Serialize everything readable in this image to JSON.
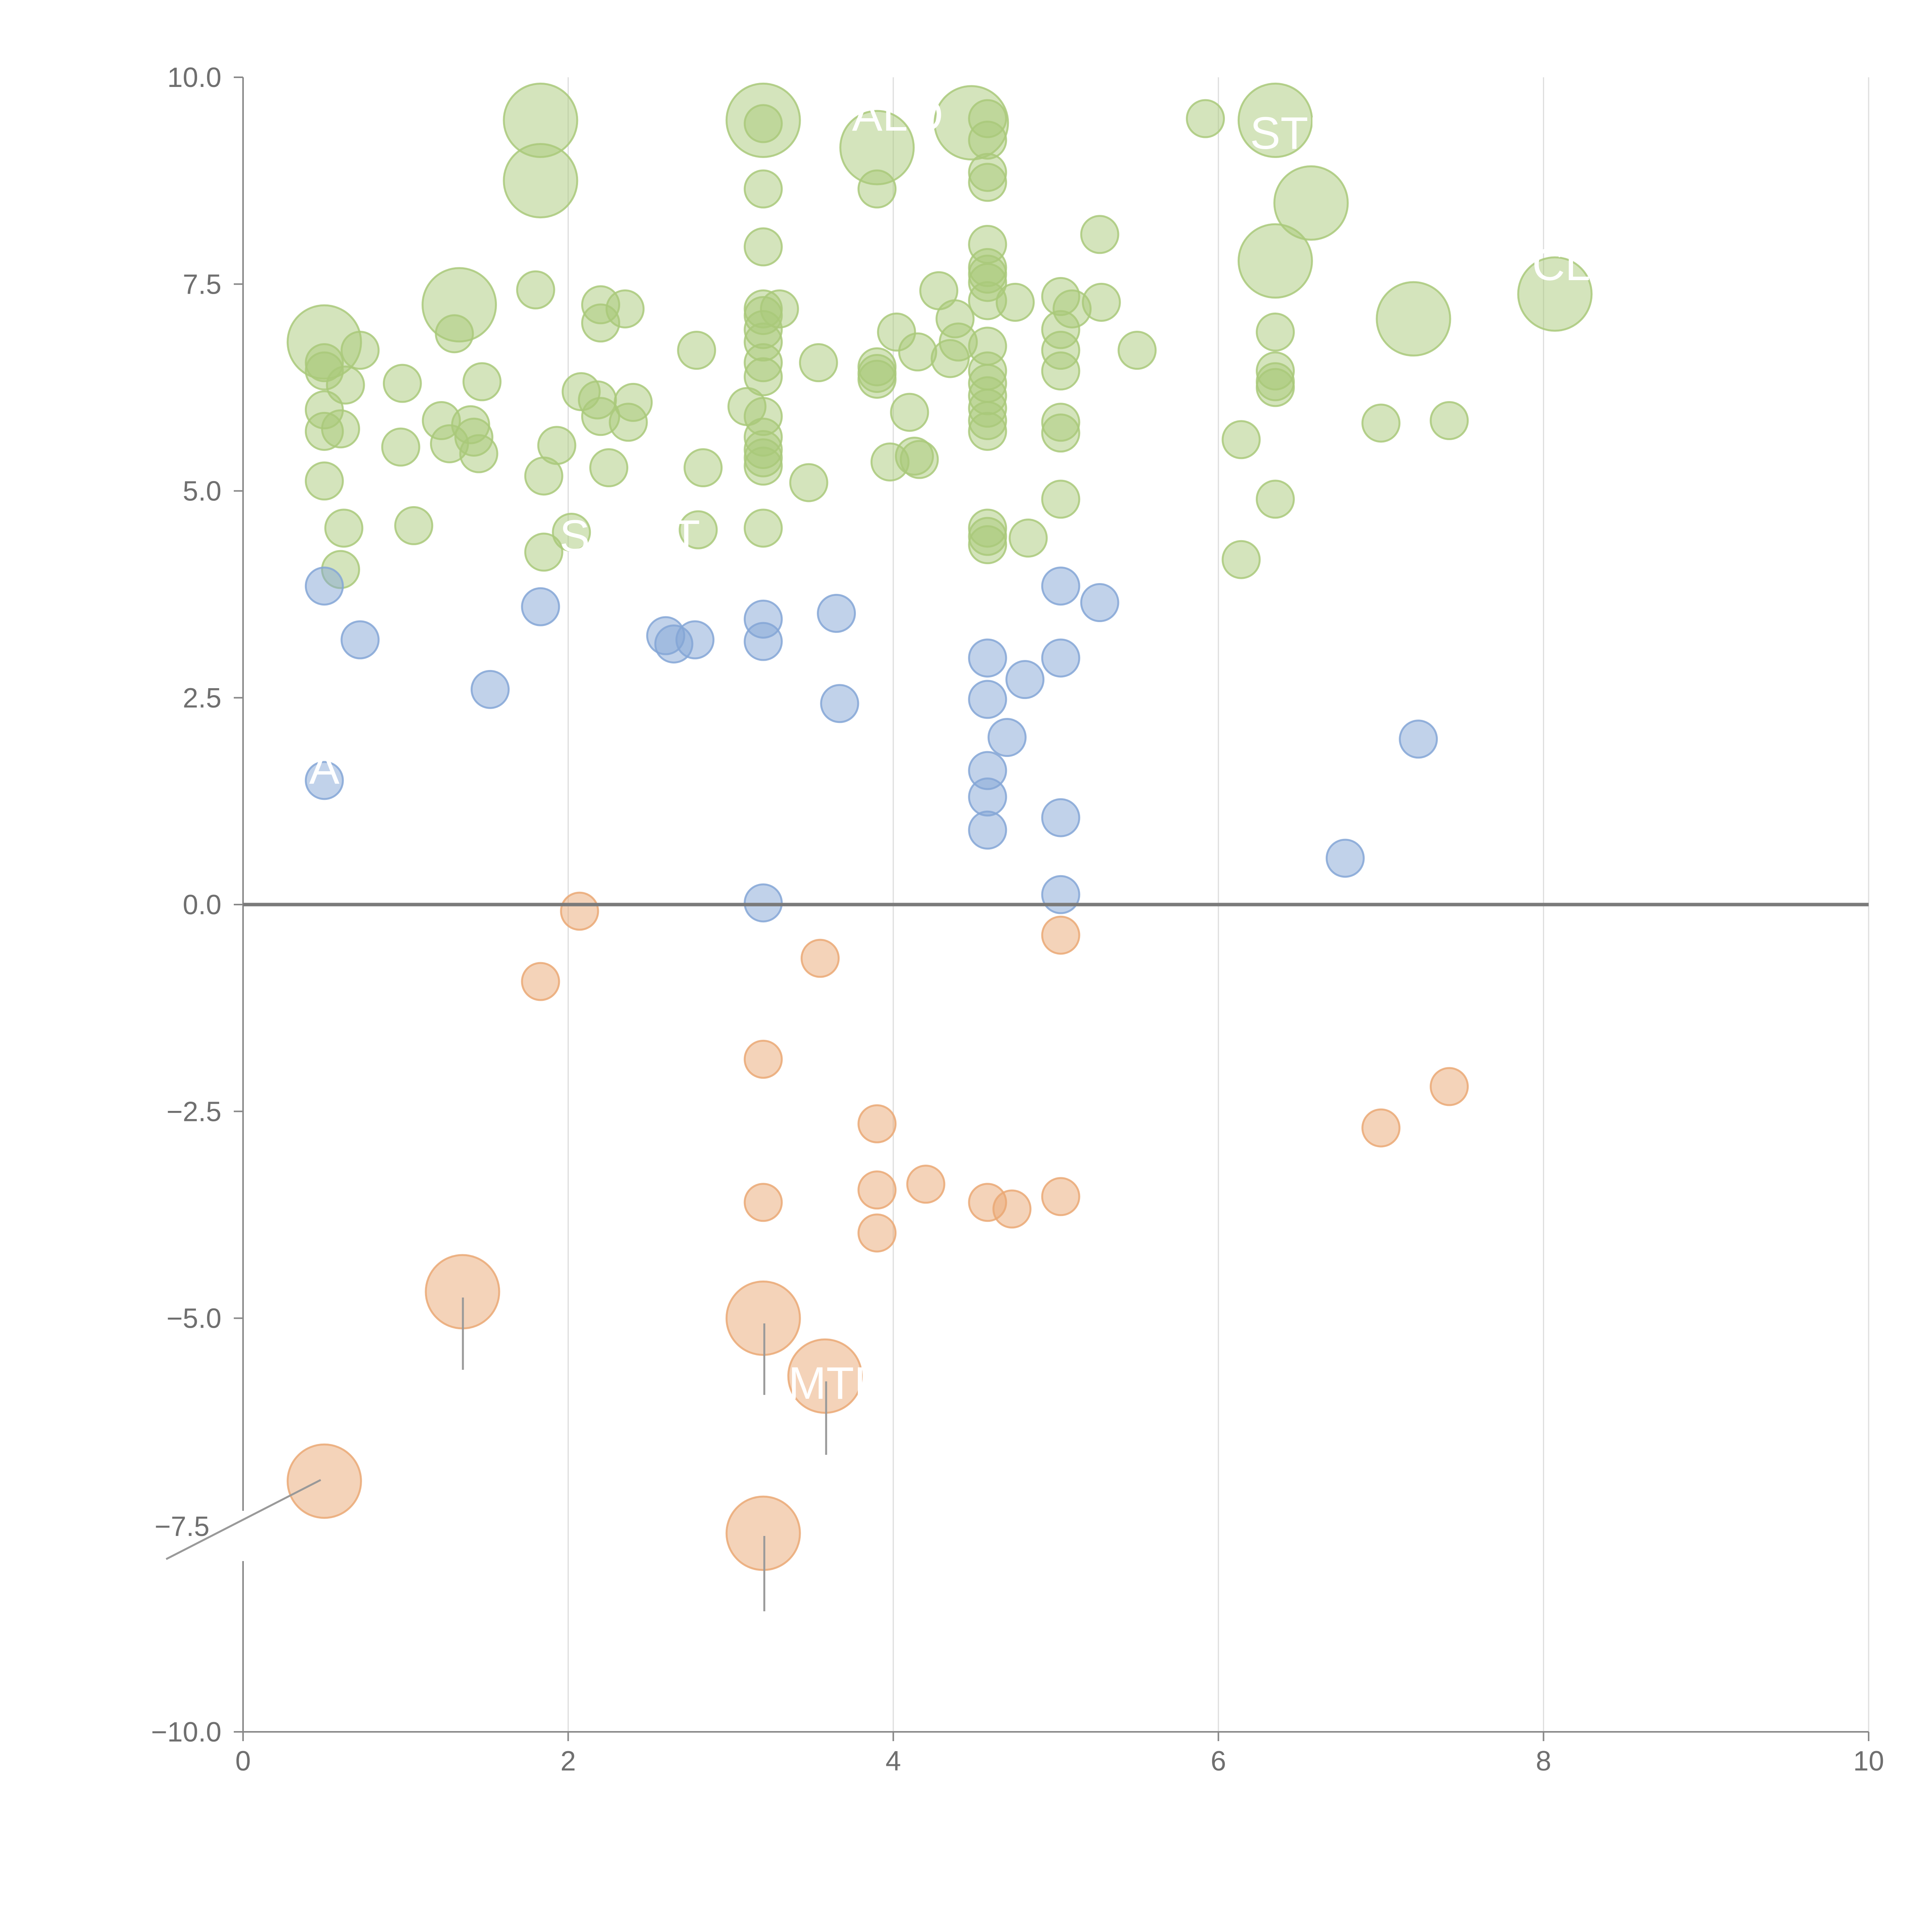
{
  "chart_data": {
    "type": "scatter",
    "title": "",
    "xlabel": "",
    "ylabel": "",
    "xlim": [
      0,
      10
    ],
    "ylim": [
      -10,
      10
    ],
    "x_ticks": [
      0,
      2,
      4,
      6,
      8,
      10
    ],
    "y_ticks": [
      -10,
      -7.5,
      -5,
      -2.5,
      0,
      2.5,
      5,
      7.5,
      10
    ],
    "x_tick_labels": [
      "0",
      "2",
      "4",
      "6",
      "8",
      "10"
    ],
    "y_tick_labels": [
      "−10.0",
      "−7.5",
      "−5.0",
      "−2.5",
      "0.0",
      "2.5",
      "5.0",
      "7.5",
      "10.0"
    ],
    "grid": "vertical lines at x ticks",
    "colors": {
      "high": "#a9c97a",
      "mid": "#84a6d6",
      "low": "#eaa874",
      "zero_line": "#7a7a7a",
      "axis": "#888888",
      "grid": "#dddddd"
    },
    "series": [
      {
        "name": "high",
        "points": [
          [
            1.83,
            9.48,
            2
          ],
          [
            1.83,
            8.75,
            2
          ],
          [
            3.2,
            9.48,
            2
          ],
          [
            3.2,
            9.44,
            1
          ],
          [
            3.9,
            9.15,
            2
          ],
          [
            4.48,
            9.45,
            2
          ],
          [
            4.58,
            9.5,
            1
          ],
          [
            4.58,
            9.24,
            1
          ],
          [
            4.58,
            8.85,
            1
          ],
          [
            4.58,
            8.73,
            1
          ],
          [
            5.92,
            9.5,
            1
          ],
          [
            6.35,
            9.48,
            2
          ],
          [
            6.57,
            8.48,
            2
          ],
          [
            3.2,
            8.65,
            1
          ],
          [
            3.9,
            8.65,
            1
          ],
          [
            3.2,
            7.95,
            1
          ],
          [
            4.58,
            7.98,
            1
          ],
          [
            4.58,
            7.7,
            1
          ],
          [
            4.58,
            7.52,
            1
          ],
          [
            4.58,
            7.62,
            1
          ],
          [
            5.27,
            8.1,
            1
          ],
          [
            6.35,
            7.78,
            2
          ],
          [
            7.2,
            7.08,
            2
          ],
          [
            8.07,
            7.38,
            2
          ],
          [
            0.5,
            6.8,
            2
          ],
          [
            0.5,
            6.55,
            1
          ],
          [
            0.5,
            6.45,
            1
          ],
          [
            0.72,
            6.7,
            1
          ],
          [
            0.63,
            6.28,
            1
          ],
          [
            0.98,
            6.3,
            1
          ],
          [
            1.33,
            7.25,
            2
          ],
          [
            1.3,
            6.9,
            1
          ],
          [
            1.8,
            7.43,
            1
          ],
          [
            2.2,
            7.25,
            1
          ],
          [
            2.35,
            7.2,
            1
          ],
          [
            2.2,
            7.03,
            1
          ],
          [
            2.08,
            6.2,
            1
          ],
          [
            2.18,
            6.1,
            1
          ],
          [
            2.2,
            5.9,
            1
          ],
          [
            2.4,
            6.07,
            1
          ],
          [
            2.37,
            5.83,
            1
          ],
          [
            2.25,
            5.28,
            1
          ],
          [
            2.79,
            6.7,
            1
          ],
          [
            3.1,
            6.02,
            1
          ],
          [
            3.2,
            7.2,
            1
          ],
          [
            3.2,
            7.12,
            1
          ],
          [
            3.2,
            6.95,
            1
          ],
          [
            3.2,
            6.8,
            1
          ],
          [
            3.2,
            6.55,
            1
          ],
          [
            3.2,
            6.38,
            1
          ],
          [
            3.3,
            7.2,
            1
          ],
          [
            3.2,
            5.9,
            1
          ],
          [
            3.2,
            5.65,
            1
          ],
          [
            3.2,
            5.5,
            1
          ],
          [
            3.2,
            5.4,
            1
          ],
          [
            3.2,
            5.3,
            1
          ],
          [
            3.54,
            6.55,
            1
          ],
          [
            3.9,
            6.5,
            1
          ],
          [
            3.9,
            6.42,
            1
          ],
          [
            3.9,
            6.35,
            1
          ],
          [
            4.02,
            6.92,
            1
          ],
          [
            4.1,
            5.95,
            1
          ],
          [
            4.15,
            6.68,
            1
          ],
          [
            4.28,
            7.42,
            1
          ],
          [
            4.38,
            7.08,
            1
          ],
          [
            4.4,
            6.8,
            1
          ],
          [
            4.35,
            6.6,
            1
          ],
          [
            4.58,
            7.3,
            1
          ],
          [
            4.58,
            6.75,
            1
          ],
          [
            4.58,
            6.45,
            1
          ],
          [
            4.58,
            6.3,
            1
          ],
          [
            4.58,
            6.15,
            1
          ],
          [
            4.58,
            6.0,
            1
          ],
          [
            4.58,
            5.85,
            1
          ],
          [
            4.58,
            5.72,
            1
          ],
          [
            4.75,
            7.28,
            1
          ],
          [
            5.03,
            7.35,
            1
          ],
          [
            5.1,
            7.2,
            1
          ],
          [
            5.03,
            6.95,
            1
          ],
          [
            5.03,
            6.7,
            1
          ],
          [
            5.03,
            6.45,
            1
          ],
          [
            5.28,
            7.28,
            1
          ],
          [
            5.5,
            6.7,
            1
          ],
          [
            5.03,
            5.83,
            1
          ],
          [
            5.03,
            5.7,
            1
          ],
          [
            6.35,
            6.92,
            1
          ],
          [
            6.35,
            6.45,
            1
          ],
          [
            6.35,
            6.32,
            1
          ],
          [
            6.35,
            6.25,
            1
          ],
          [
            0.5,
            5.98,
            1
          ],
          [
            0.5,
            5.72,
            1
          ],
          [
            0.6,
            5.75,
            1
          ],
          [
            0.97,
            5.53,
            1
          ],
          [
            1.22,
            5.85,
            1
          ],
          [
            1.27,
            5.57,
            1
          ],
          [
            1.4,
            5.8,
            1
          ],
          [
            1.42,
            5.65,
            1
          ],
          [
            1.45,
            5.45,
            1
          ],
          [
            1.47,
            6.32,
            1
          ],
          [
            0.5,
            5.12,
            1
          ],
          [
            1.93,
            5.55,
            1
          ],
          [
            1.85,
            5.18,
            1
          ],
          [
            2.83,
            5.28,
            1
          ],
          [
            3.48,
            5.1,
            1
          ],
          [
            3.98,
            5.35,
            1
          ],
          [
            4.13,
            5.42,
            1
          ],
          [
            4.16,
            5.38,
            1
          ],
          [
            5.03,
            4.9,
            1
          ],
          [
            6.14,
            5.62,
            1
          ],
          [
            7.0,
            5.82,
            1
          ],
          [
            7.42,
            5.85,
            1
          ],
          [
            0.62,
            4.55,
            1
          ],
          [
            0.6,
            4.05,
            1
          ],
          [
            1.05,
            4.58,
            1
          ],
          [
            1.85,
            4.26,
            1
          ],
          [
            2.02,
            4.5,
            1
          ],
          [
            2.8,
            4.53,
            1
          ],
          [
            3.2,
            4.55,
            1
          ],
          [
            4.58,
            4.55,
            1
          ],
          [
            4.58,
            4.45,
            1
          ],
          [
            4.58,
            4.35,
            1
          ],
          [
            4.83,
            4.43,
            1
          ],
          [
            6.35,
            4.9,
            1
          ],
          [
            6.14,
            4.17,
            1
          ]
        ]
      },
      {
        "name": "mid",
        "points": [
          [
            0.5,
            3.85
          ],
          [
            0.72,
            3.2
          ],
          [
            1.52,
            2.6
          ],
          [
            1.83,
            3.6
          ],
          [
            2.6,
            3.25
          ],
          [
            2.65,
            3.15
          ],
          [
            2.78,
            3.2
          ],
          [
            3.2,
            3.45
          ],
          [
            3.2,
            3.18
          ],
          [
            3.65,
            3.52
          ],
          [
            3.67,
            2.43
          ],
          [
            4.58,
            2.98
          ],
          [
            4.58,
            2.48
          ],
          [
            4.81,
            2.72
          ],
          [
            4.7,
            2.02
          ],
          [
            4.58,
            1.62
          ],
          [
            4.58,
            1.3
          ],
          [
            4.58,
            0.9
          ],
          [
            5.03,
            3.85
          ],
          [
            5.27,
            3.65
          ],
          [
            5.03,
            2.98
          ],
          [
            5.03,
            1.05
          ],
          [
            5.03,
            0.12
          ],
          [
            3.2,
            0.02
          ],
          [
            0.5,
            1.5
          ],
          [
            6.78,
            0.56
          ],
          [
            7.23,
            2.0
          ]
        ]
      },
      {
        "name": "low",
        "points": [
          [
            2.07,
            -0.08,
            1
          ],
          [
            1.83,
            -0.93,
            1
          ],
          [
            3.55,
            -0.65,
            1
          ],
          [
            5.03,
            -0.37,
            1
          ],
          [
            3.2,
            -1.87,
            1
          ],
          [
            3.9,
            -2.65,
            1
          ],
          [
            3.9,
            -3.45,
            1
          ],
          [
            4.2,
            -3.38,
            1
          ],
          [
            3.9,
            -3.97,
            1
          ],
          [
            4.58,
            -3.6,
            1
          ],
          [
            4.73,
            -3.68,
            1
          ],
          [
            5.03,
            -3.53,
            1
          ],
          [
            3.2,
            -3.6,
            1
          ],
          [
            7.0,
            -2.7,
            1
          ],
          [
            7.42,
            -2.2,
            1
          ],
          [
            1.35,
            -4.68,
            2
          ],
          [
            3.2,
            -5.0,
            2
          ],
          [
            3.58,
            -5.7,
            2
          ],
          [
            0.5,
            -6.97,
            2
          ],
          [
            3.2,
            -7.6,
            2
          ]
        ]
      }
    ],
    "annotations": [
      "ALO",
      "STI",
      "CL",
      "S",
      "T",
      "A",
      "MTL",
      "−7.5"
    ]
  }
}
